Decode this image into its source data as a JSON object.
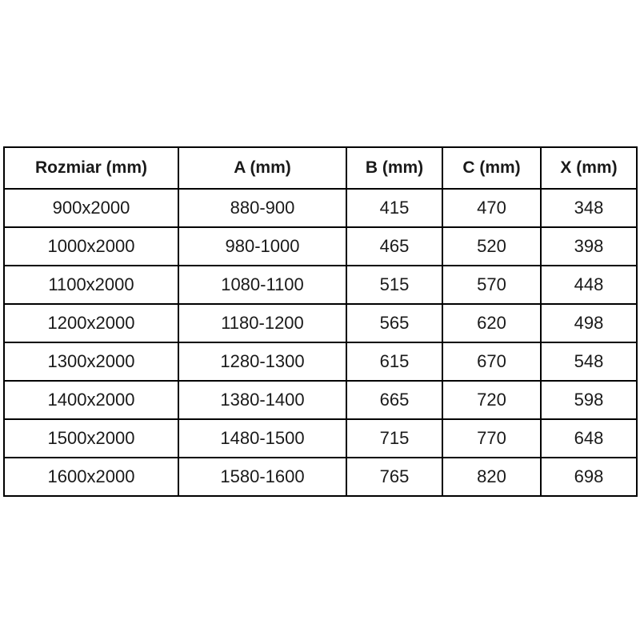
{
  "table": {
    "title": "size-specification-table",
    "headers": [
      "Rozmiar (mm)",
      "A (mm)",
      "B (mm)",
      "C (mm)",
      "X (mm)"
    ],
    "rows": [
      [
        "900x2000",
        "880-900",
        "415",
        "470",
        "348"
      ],
      [
        "1000x2000",
        "980-1000",
        "465",
        "520",
        "398"
      ],
      [
        "1100x2000",
        "1080-1100",
        "515",
        "570",
        "448"
      ],
      [
        "1200x2000",
        "1180-1200",
        "565",
        "620",
        "498"
      ],
      [
        "1300x2000",
        "1280-1300",
        "615",
        "670",
        "548"
      ],
      [
        "1400x2000",
        "1380-1400",
        "665",
        "720",
        "598"
      ],
      [
        "1500x2000",
        "1480-1500",
        "715",
        "770",
        "648"
      ],
      [
        "1600x2000",
        "1580-1600",
        "765",
        "820",
        "698"
      ]
    ],
    "colors": {
      "border": "#000000",
      "text": "#1a1a1a",
      "background": "#ffffff"
    }
  }
}
